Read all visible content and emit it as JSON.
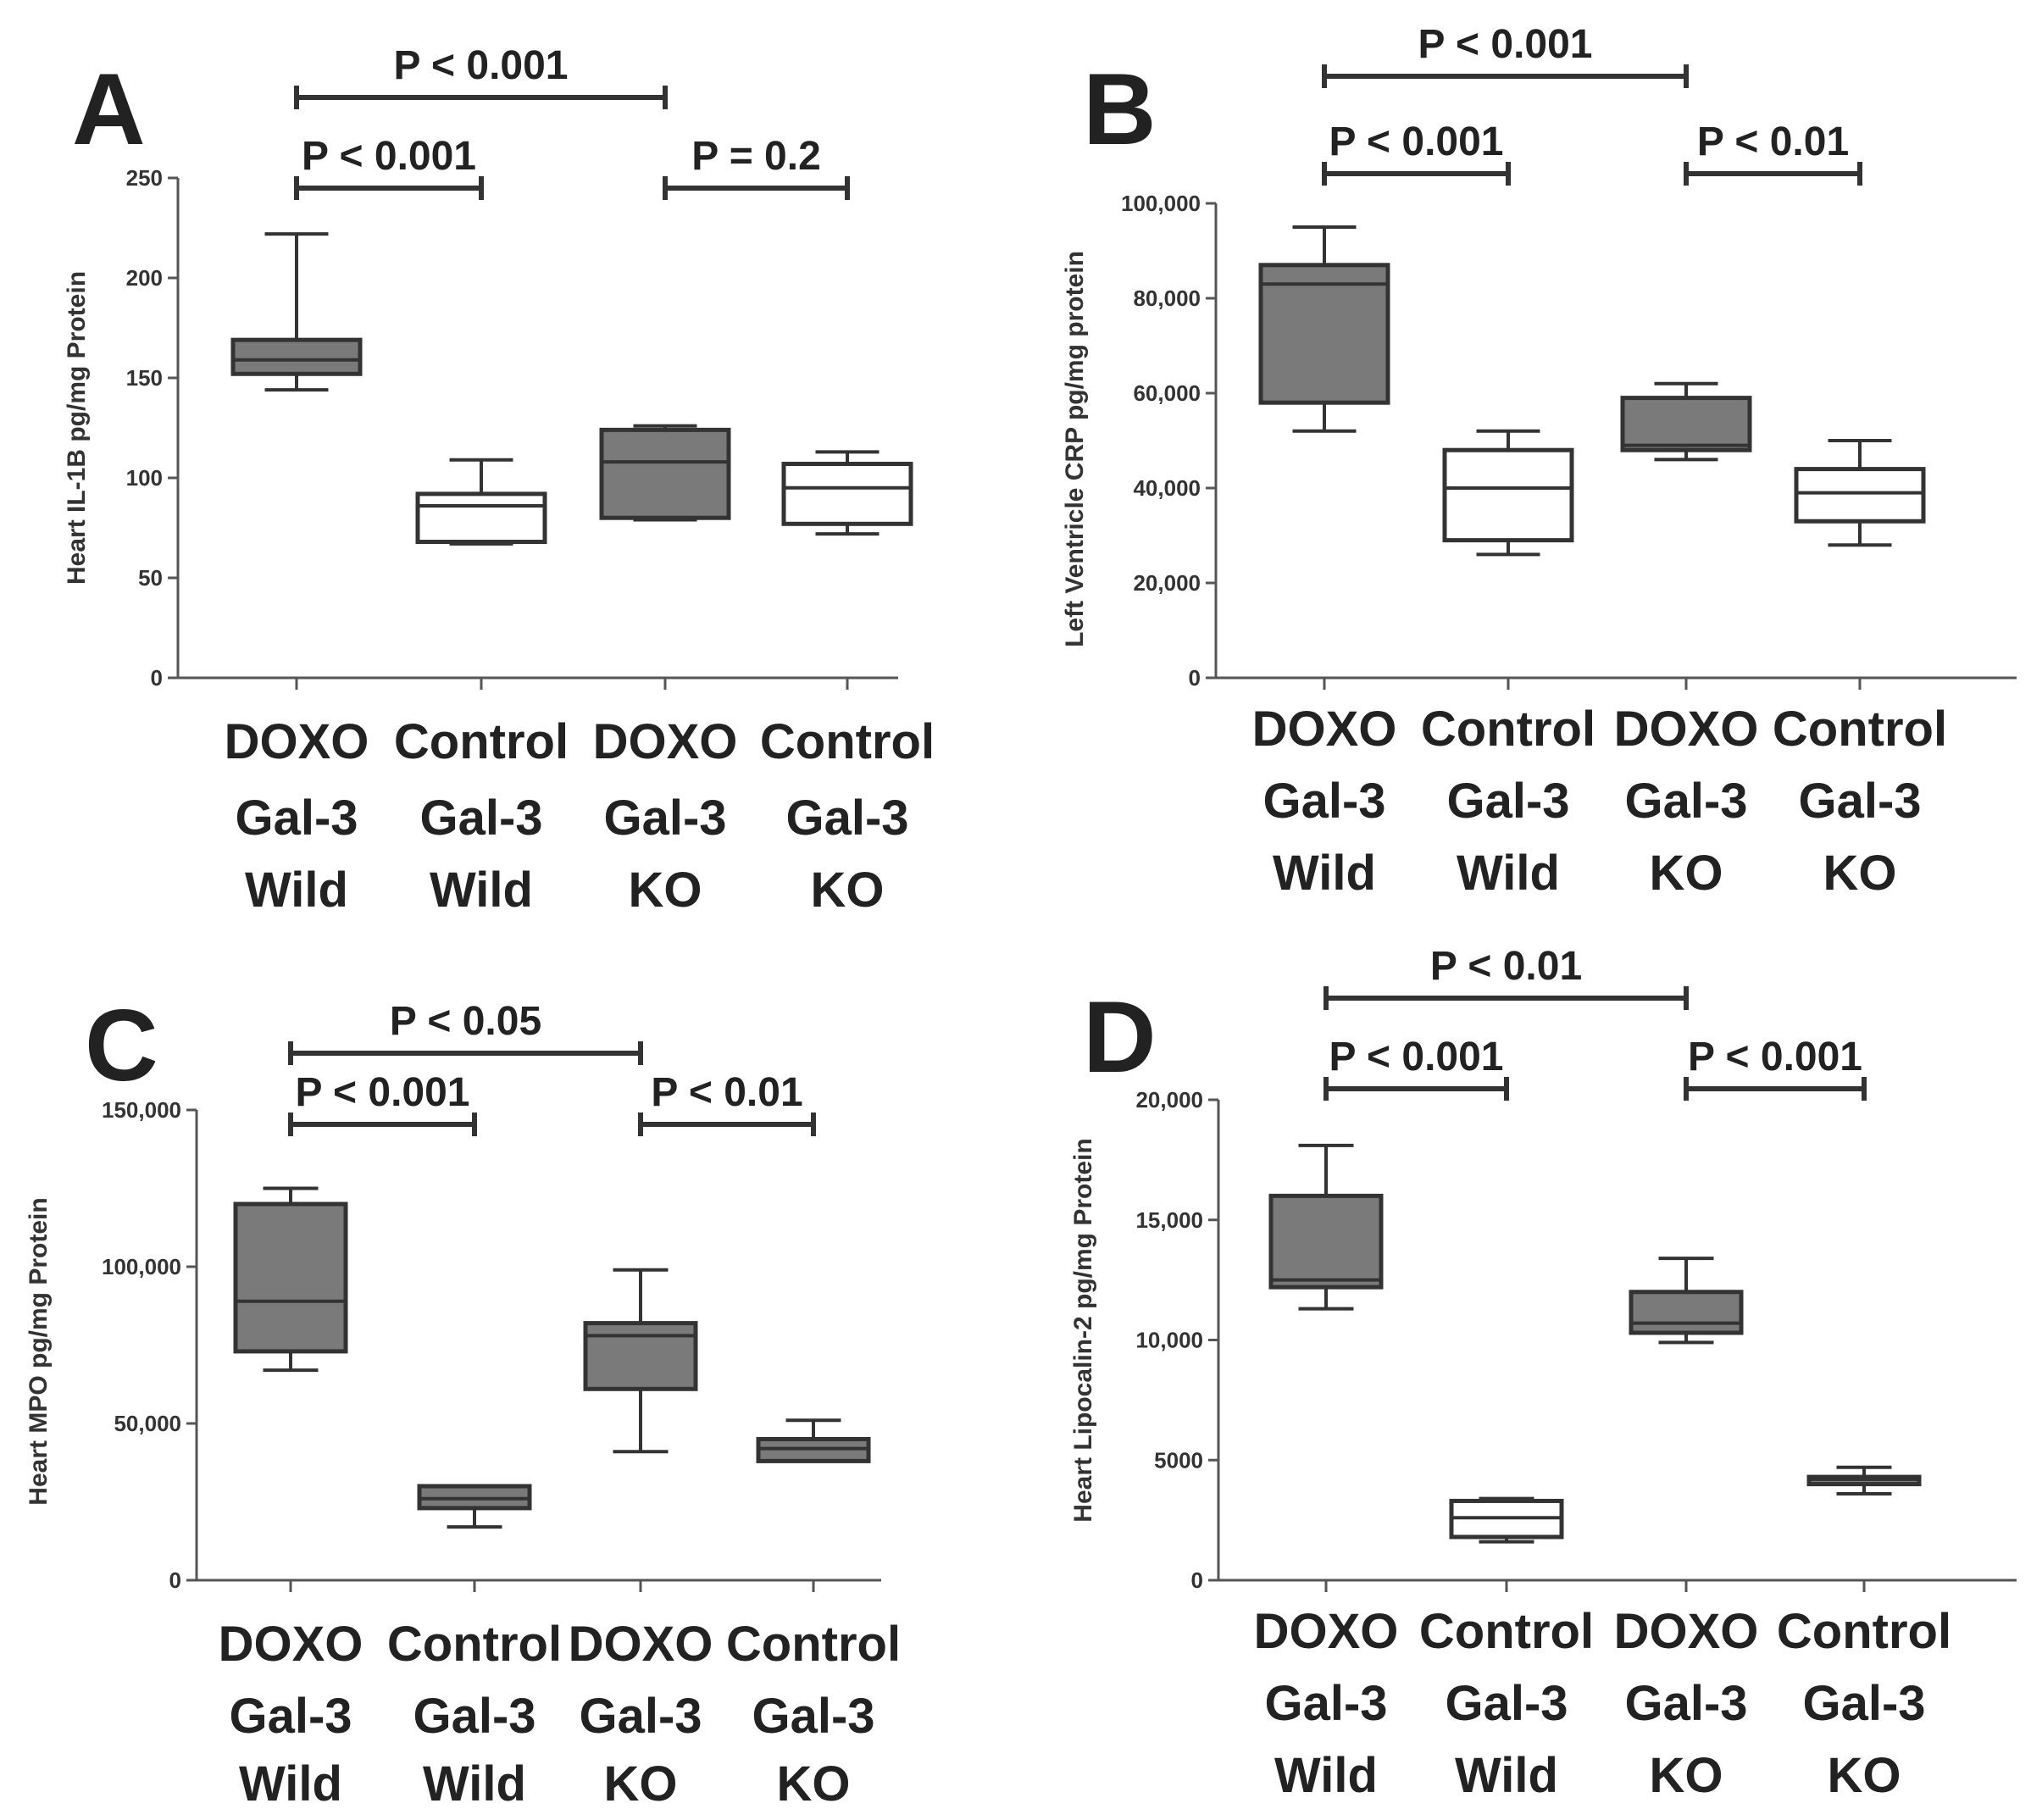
{
  "colors": {
    "filled": "#7a7a7a",
    "open": "#ffffff",
    "stroke": "#333333"
  },
  "chart_data": [
    {
      "panel": "A",
      "type": "box",
      "ylabel": "Heart IL-1B pg/mg Protein",
      "ylim": [
        0,
        250
      ],
      "yticks": [
        {
          "value": 0,
          "label": "0"
        },
        {
          "value": 50,
          "label": "50"
        },
        {
          "value": 100,
          "label": "100"
        },
        {
          "value": 150,
          "label": "150"
        },
        {
          "value": 200,
          "label": "200"
        },
        {
          "value": 250,
          "label": "250"
        }
      ],
      "categories": [
        {
          "lines": [
            "DOXO",
            "Gal-3",
            "Wild"
          ],
          "fill": "filled",
          "min": 144,
          "q1": 152,
          "median": 159,
          "q3": 169,
          "max": 222
        },
        {
          "lines": [
            "Control",
            "Gal-3",
            "Wild"
          ],
          "fill": "open",
          "min": 67,
          "q1": 68,
          "median": 86,
          "q3": 92,
          "max": 109
        },
        {
          "lines": [
            "DOXO",
            "Gal-3",
            "KO"
          ],
          "fill": "filled",
          "min": 79,
          "q1": 80,
          "median": 108,
          "q3": 124,
          "max": 126
        },
        {
          "lines": [
            "Control",
            "Gal-3",
            "KO"
          ],
          "fill": "open",
          "min": 72,
          "q1": 77,
          "median": 95,
          "q3": 107,
          "max": 113
        }
      ],
      "comparisons": [
        {
          "from": 0,
          "to": 2,
          "level": 2,
          "label": "P < 0.001"
        },
        {
          "from": 0,
          "to": 1,
          "level": 1,
          "label": "P < 0.001"
        },
        {
          "from": 2,
          "to": 3,
          "level": 1,
          "label": "P = 0.2"
        }
      ]
    },
    {
      "panel": "B",
      "type": "box",
      "ylabel": "Left  Ventricle CRP pg/mg protein",
      "ylim": [
        0,
        100000
      ],
      "yticks": [
        {
          "value": 0,
          "label": "0"
        },
        {
          "value": 20000,
          "label": "20,000"
        },
        {
          "value": 40000,
          "label": "40,000"
        },
        {
          "value": 60000,
          "label": "60,000"
        },
        {
          "value": 80000,
          "label": "80,000"
        },
        {
          "value": 100000,
          "label": "100,000"
        }
      ],
      "categories": [
        {
          "lines": [
            "DOXO",
            "Gal-3",
            "Wild"
          ],
          "fill": "filled",
          "min": 52000,
          "q1": 58000,
          "median": 83000,
          "q3": 87000,
          "max": 95000
        },
        {
          "lines": [
            "Control",
            "Gal-3",
            "Wild"
          ],
          "fill": "open",
          "min": 26000,
          "q1": 29000,
          "median": 40000,
          "q3": 48000,
          "max": 52000
        },
        {
          "lines": [
            "DOXO",
            "Gal-3",
            "KO"
          ],
          "fill": "filled",
          "min": 46000,
          "q1": 48000,
          "median": 49000,
          "q3": 59000,
          "max": 62000
        },
        {
          "lines": [
            "Control",
            "Gal-3",
            "KO"
          ],
          "fill": "open",
          "min": 28000,
          "q1": 33000,
          "median": 39000,
          "q3": 44000,
          "max": 50000
        }
      ],
      "comparisons": [
        {
          "from": 0,
          "to": 2,
          "level": 2,
          "label": "P < 0.001"
        },
        {
          "from": 0,
          "to": 1,
          "level": 1,
          "label": "P < 0.001"
        },
        {
          "from": 2,
          "to": 3,
          "level": 1,
          "label": "P < 0.01"
        }
      ]
    },
    {
      "panel": "C",
      "type": "box",
      "ylabel": "Heart MPO pg/mg Protein",
      "ylim": [
        0,
        150000
      ],
      "yticks": [
        {
          "value": 0,
          "label": "0"
        },
        {
          "value": 50000,
          "label": "50,000"
        },
        {
          "value": 100000,
          "label": "100,000"
        },
        {
          "value": 150000,
          "label": "150,000"
        }
      ],
      "categories": [
        {
          "lines": [
            "DOXO",
            "Gal-3",
            "Wild"
          ],
          "fill": "filled",
          "min": 67000,
          "q1": 73000,
          "median": 89000,
          "q3": 120000,
          "max": 125000
        },
        {
          "lines": [
            "Control",
            "Gal-3",
            "Wild"
          ],
          "fill": "filled",
          "min": 17000,
          "q1": 23000,
          "median": 26000,
          "q3": 30000,
          "max": 30000
        },
        {
          "lines": [
            "DOXO",
            "Gal-3",
            "KO"
          ],
          "fill": "filled",
          "min": 41000,
          "q1": 61000,
          "median": 78000,
          "q3": 82000,
          "max": 99000
        },
        {
          "lines": [
            "Control",
            "Gal-3",
            "KO"
          ],
          "fill": "filled",
          "min": 38000,
          "q1": 38000,
          "median": 42000,
          "q3": 45000,
          "max": 51000
        }
      ],
      "comparisons": [
        {
          "from": 0,
          "to": 2,
          "level": 2,
          "label": "P < 0.05"
        },
        {
          "from": 0,
          "to": 1,
          "level": 1,
          "label": "P < 0.001"
        },
        {
          "from": 2,
          "to": 3,
          "level": 1,
          "label": "P < 0.01"
        }
      ]
    },
    {
      "panel": "D",
      "type": "box",
      "ylabel": "Heart Lipocalin-2 pg/mg Protein",
      "ylim": [
        0,
        20000
      ],
      "yticks": [
        {
          "value": 0,
          "label": "0"
        },
        {
          "value": 5000,
          "label": "5000"
        },
        {
          "value": 10000,
          "label": "10,000"
        },
        {
          "value": 15000,
          "label": "15,000"
        },
        {
          "value": 20000,
          "label": "20,000"
        }
      ],
      "categories": [
        {
          "lines": [
            "DOXO",
            "Gal-3",
            "Wild"
          ],
          "fill": "filled",
          "min": 11300,
          "q1": 12200,
          "median": 12500,
          "q3": 16000,
          "max": 18100
        },
        {
          "lines": [
            "Control",
            "Gal-3",
            "Wild"
          ],
          "fill": "open",
          "min": 1600,
          "q1": 1800,
          "median": 2600,
          "q3": 3300,
          "max": 3400
        },
        {
          "lines": [
            "DOXO",
            "Gal-3",
            "KO"
          ],
          "fill": "filled",
          "min": 9900,
          "q1": 10300,
          "median": 10700,
          "q3": 12000,
          "max": 13400
        },
        {
          "lines": [
            "Control",
            "Gal-3",
            "KO"
          ],
          "fill": "filled",
          "min": 3600,
          "q1": 4000,
          "median": 4200,
          "q3": 4300,
          "max": 4700
        }
      ],
      "comparisons": [
        {
          "from": 0,
          "to": 2,
          "level": 2,
          "label": "P < 0.01"
        },
        {
          "from": 0,
          "to": 1,
          "level": 1,
          "label": "P < 0.001"
        },
        {
          "from": 2,
          "to": 3,
          "level": 1,
          "label": "P < 0.001"
        }
      ]
    }
  ]
}
